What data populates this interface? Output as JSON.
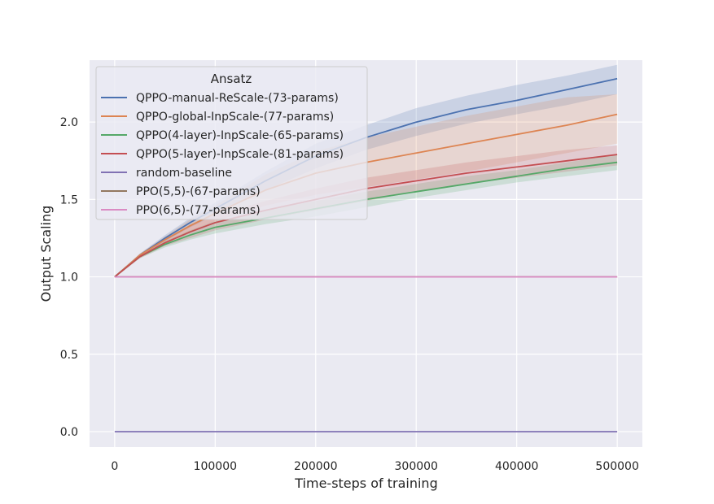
{
  "chart_data": {
    "type": "line",
    "title": "",
    "xlabel": "Time-steps of training",
    "ylabel": "Output Scaling",
    "xlim": [
      -25000,
      525000
    ],
    "ylim": [
      -0.1,
      2.4
    ],
    "xticks": [
      0,
      100000,
      200000,
      300000,
      400000,
      500000
    ],
    "xtick_labels": [
      "0",
      "100000",
      "200000",
      "300000",
      "400000",
      "500000"
    ],
    "yticks": [
      0.0,
      0.5,
      1.0,
      1.5,
      2.0
    ],
    "ytick_labels": [
      "0.0",
      "0.5",
      "1.0",
      "1.5",
      "2.0"
    ],
    "grid": true,
    "legend": {
      "title": "Ansatz",
      "placement": "upper-left"
    },
    "x": [
      0,
      25000,
      50000,
      75000,
      100000,
      150000,
      200000,
      250000,
      300000,
      350000,
      400000,
      450000,
      500000
    ],
    "series": [
      {
        "name": "QPPO-manual-ReScale-(73-params)",
        "color": "#4c72b0",
        "values": [
          1.0,
          1.14,
          1.25,
          1.35,
          1.44,
          1.62,
          1.78,
          1.9,
          2.0,
          2.08,
          2.14,
          2.21,
          2.28
        ],
        "lower": [
          1.0,
          1.13,
          1.23,
          1.32,
          1.4,
          1.56,
          1.7,
          1.82,
          1.91,
          1.99,
          2.05,
          2.11,
          2.18
        ],
        "upper": [
          1.0,
          1.15,
          1.27,
          1.38,
          1.48,
          1.68,
          1.86,
          1.98,
          2.09,
          2.17,
          2.24,
          2.3,
          2.37
        ]
      },
      {
        "name": "QPPO-global-InpScale-(77-params)",
        "color": "#dd8452",
        "values": [
          1.0,
          1.14,
          1.24,
          1.33,
          1.41,
          1.56,
          1.67,
          1.74,
          1.8,
          1.86,
          1.92,
          1.98,
          2.05
        ],
        "lower": [
          1.0,
          1.13,
          1.22,
          1.29,
          1.36,
          1.46,
          1.53,
          1.58,
          1.63,
          1.68,
          1.74,
          1.8,
          1.86
        ],
        "upper": [
          1.0,
          1.15,
          1.26,
          1.37,
          1.46,
          1.66,
          1.81,
          1.9,
          1.97,
          2.04,
          2.1,
          2.16,
          2.18
        ]
      },
      {
        "name": "QPPO(4-layer)-InpScale-(65-params)",
        "color": "#55a868",
        "values": [
          1.0,
          1.13,
          1.21,
          1.27,
          1.32,
          1.38,
          1.44,
          1.5,
          1.55,
          1.6,
          1.65,
          1.7,
          1.74
        ],
        "lower": [
          1.0,
          1.12,
          1.19,
          1.24,
          1.28,
          1.34,
          1.39,
          1.45,
          1.51,
          1.56,
          1.61,
          1.65,
          1.69
        ],
        "upper": [
          1.0,
          1.14,
          1.23,
          1.3,
          1.36,
          1.43,
          1.49,
          1.55,
          1.6,
          1.65,
          1.69,
          1.74,
          1.79
        ]
      },
      {
        "name": "QPPO(5-layer)-InpScale-(81-params)",
        "color": "#c44e52",
        "values": [
          1.0,
          1.13,
          1.22,
          1.29,
          1.35,
          1.43,
          1.5,
          1.57,
          1.62,
          1.67,
          1.71,
          1.75,
          1.79
        ],
        "lower": [
          1.0,
          1.12,
          1.2,
          1.25,
          1.3,
          1.37,
          1.43,
          1.49,
          1.55,
          1.6,
          1.64,
          1.68,
          1.72
        ],
        "upper": [
          1.0,
          1.14,
          1.24,
          1.33,
          1.4,
          1.49,
          1.57,
          1.64,
          1.69,
          1.74,
          1.78,
          1.82,
          1.85
        ]
      },
      {
        "name": "random-baseline",
        "color": "#8172b3",
        "values": [
          0.0,
          0.0,
          0.0,
          0.0,
          0.0,
          0.0,
          0.0,
          0.0,
          0.0,
          0.0,
          0.0,
          0.0,
          0.0
        ]
      },
      {
        "name": "PPO(5,5)-(67-params)",
        "color": "#937860",
        "values": [
          1.0,
          1.0,
          1.0,
          1.0,
          1.0,
          1.0,
          1.0,
          1.0,
          1.0,
          1.0,
          1.0,
          1.0,
          1.0
        ]
      },
      {
        "name": "PPO(6,5)-(77-params)",
        "color": "#da8bc3",
        "values": [
          1.0,
          1.0,
          1.0,
          1.0,
          1.0,
          1.0,
          1.0,
          1.0,
          1.0,
          1.0,
          1.0,
          1.0,
          1.0
        ]
      }
    ]
  }
}
